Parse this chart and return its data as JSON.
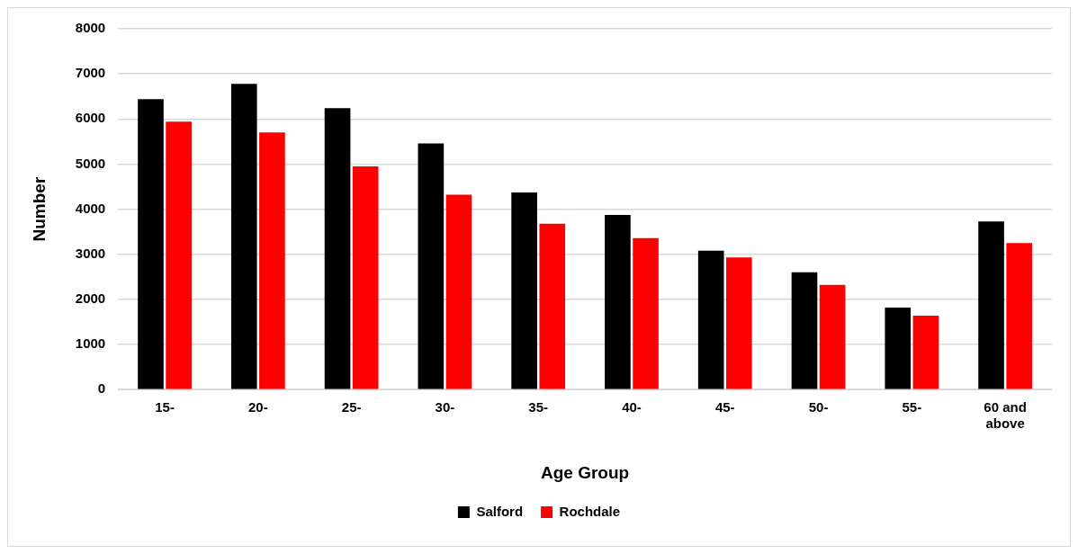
{
  "chart_data": {
    "type": "bar",
    "xlabel": "Age Group",
    "ylabel": "Number",
    "categories": [
      "15-",
      "20-",
      "25-",
      "30-",
      "35-",
      "40-",
      "45-",
      "50-",
      "55-",
      "60 and above"
    ],
    "series": [
      {
        "name": "Salford",
        "color": "#000000",
        "values": [
          6440,
          6780,
          6240,
          5460,
          4370,
          3870,
          3080,
          2600,
          1820,
          3730
        ]
      },
      {
        "name": "Rochdale",
        "color": "#ff0000",
        "values": [
          5940,
          5700,
          4950,
          4320,
          3680,
          3360,
          2930,
          2320,
          1640,
          3250
        ]
      }
    ],
    "ylim": [
      0,
      8000
    ],
    "yticks": [
      0,
      1000,
      2000,
      3000,
      4000,
      5000,
      6000,
      7000,
      8000
    ],
    "grid": "y",
    "legend": "bottom"
  }
}
